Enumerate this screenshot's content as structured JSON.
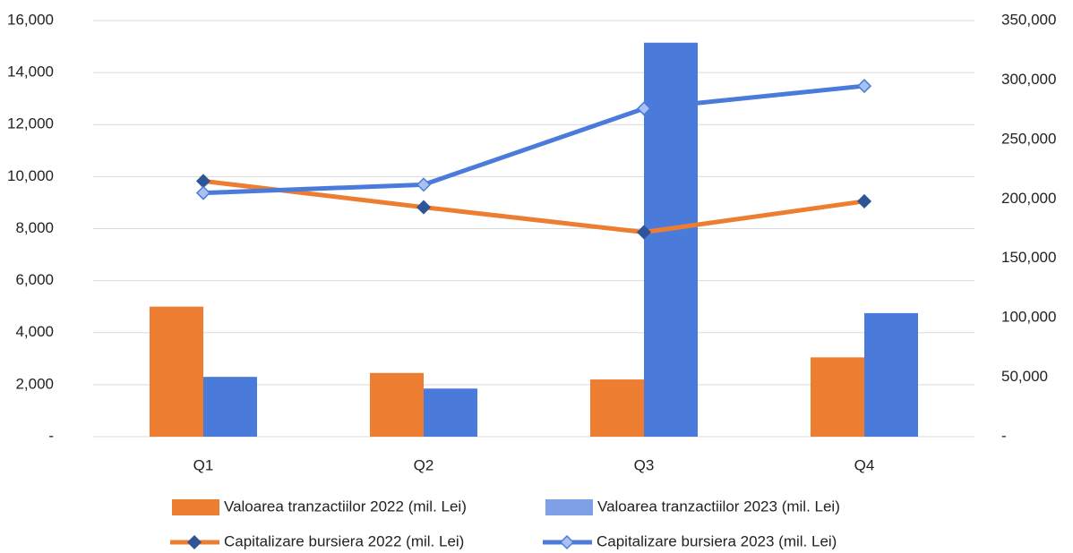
{
  "chart_data": {
    "type": "combo",
    "categories": [
      "Q1",
      "Q2",
      "Q3",
      "Q4"
    ],
    "series": [
      {
        "name": "Valoarea tranzactiilor 2022 (mil. Lei)",
        "type": "bar",
        "color": "#ED7D31",
        "values": [
          5000,
          2450,
          2200,
          3050
        ]
      },
      {
        "name": "Valoarea tranzactiilor 2023 (mil. Lei)",
        "type": "bar",
        "color": "#4A7BDB",
        "values": [
          2300,
          1850,
          15150,
          4750
        ]
      },
      {
        "name": "Capitalizare bursiera 2022 (mil. Lei)",
        "type": "line",
        "axis": "y2",
        "color": "#ED7D31",
        "marker_color": "#2F5597",
        "values": [
          215000,
          193000,
          172000,
          198000
        ]
      },
      {
        "name": "Capitalizare bursiera 2023 (mil. Lei)",
        "type": "line",
        "axis": "y2",
        "color": "#4A7BDB",
        "marker_color": "#A9C1F0",
        "values": [
          205000,
          212000,
          276000,
          295000
        ]
      }
    ],
    "ylim": [
      0,
      16000
    ],
    "yticks": [
      {
        "value": 0,
        "label": "-"
      },
      {
        "value": 2000,
        "label": "2,000"
      },
      {
        "value": 4000,
        "label": "4,000"
      },
      {
        "value": 6000,
        "label": "6,000"
      },
      {
        "value": 8000,
        "label": "8,000"
      },
      {
        "value": 10000,
        "label": "10,000"
      },
      {
        "value": 12000,
        "label": "12,000"
      },
      {
        "value": 14000,
        "label": "14,000"
      },
      {
        "value": 16000,
        "label": "16,000"
      }
    ],
    "y2lim": [
      0,
      350000
    ],
    "y2ticks": [
      {
        "value": 0,
        "label": "-"
      },
      {
        "value": 50000,
        "label": "50,000"
      },
      {
        "value": 100000,
        "label": "100,000"
      },
      {
        "value": 150000,
        "label": "150,000"
      },
      {
        "value": 200000,
        "label": "200,000"
      },
      {
        "value": 250000,
        "label": "250,000"
      },
      {
        "value": 300000,
        "label": "300,000"
      },
      {
        "value": 350000,
        "label": "350,000"
      }
    ],
    "grid": true,
    "legend": "bottom"
  }
}
